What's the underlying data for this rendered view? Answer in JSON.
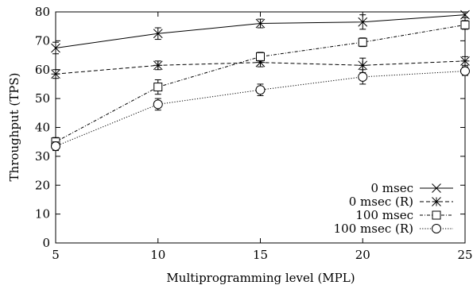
{
  "chart_data": {
    "type": "line",
    "title": "",
    "xlabel": "Multiprogramming level (MPL)",
    "ylabel": "Throughput (TPS)",
    "xlim": [
      5,
      25
    ],
    "ylim": [
      0,
      80
    ],
    "x_ticks": [
      5,
      10,
      15,
      20,
      25
    ],
    "y_ticks": [
      0,
      10,
      20,
      30,
      40,
      50,
      60,
      70,
      80
    ],
    "grid": false,
    "legend_position": "bottom-right",
    "x": [
      5,
      10,
      15,
      20,
      25
    ],
    "series": [
      {
        "name": "0 msec",
        "marker": "x",
        "line": "solid",
        "values": [
          67.5,
          72.5,
          76,
          76.5,
          79
        ],
        "errors": [
          2,
          2,
          1.5,
          2.5,
          1
        ]
      },
      {
        "name": "0 msec (R)",
        "marker": "star",
        "line": "dashed",
        "values": [
          58.5,
          61.5,
          62.5,
          61.5,
          63
        ],
        "errors": [
          1.5,
          1.5,
          1.5,
          2.5,
          1.5
        ]
      },
      {
        "name": "100 msec",
        "marker": "square",
        "line": "dashdot",
        "values": [
          35,
          54,
          64.5,
          69.5,
          75.5
        ],
        "errors": [
          1.5,
          2.5,
          1.5,
          1.5,
          1.5
        ]
      },
      {
        "name": "100 msec (R)",
        "marker": "circle",
        "line": "dotted",
        "values": [
          33.5,
          48,
          53,
          57.5,
          59.5
        ],
        "errors": [
          1.5,
          2,
          2,
          2.5,
          1.5
        ]
      }
    ]
  }
}
